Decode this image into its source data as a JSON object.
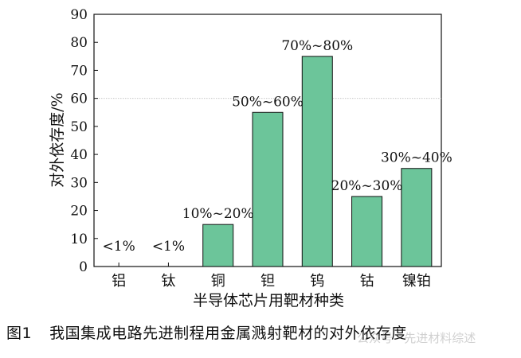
{
  "caption": {
    "number": "图1",
    "text": "我国集成电路先进制程用金属溅射靶材的对外依存度"
  },
  "watermark": "公众号 · 先进材料综述",
  "chart_data": {
    "type": "bar",
    "categories": [
      "铝",
      "钛",
      "铜",
      "钽",
      "钨",
      "钴",
      "镍铂"
    ],
    "values": [
      0,
      0,
      15,
      55,
      75,
      25,
      35
    ],
    "data_labels": [
      "<1%",
      "<1%",
      "10%~20%",
      "50%~60%",
      "70%~80%",
      "20%~30%",
      "30%~40%"
    ],
    "xlabel": "半导体芯片用靶材种类",
    "ylabel": "对外依存度/%",
    "ylim": [
      0,
      90
    ],
    "yticks": [
      0,
      10,
      20,
      30,
      40,
      50,
      60,
      70,
      80,
      90
    ],
    "reference_line": 60,
    "bar_color": "#6cc59a",
    "grid": false,
    "legend": "none"
  }
}
